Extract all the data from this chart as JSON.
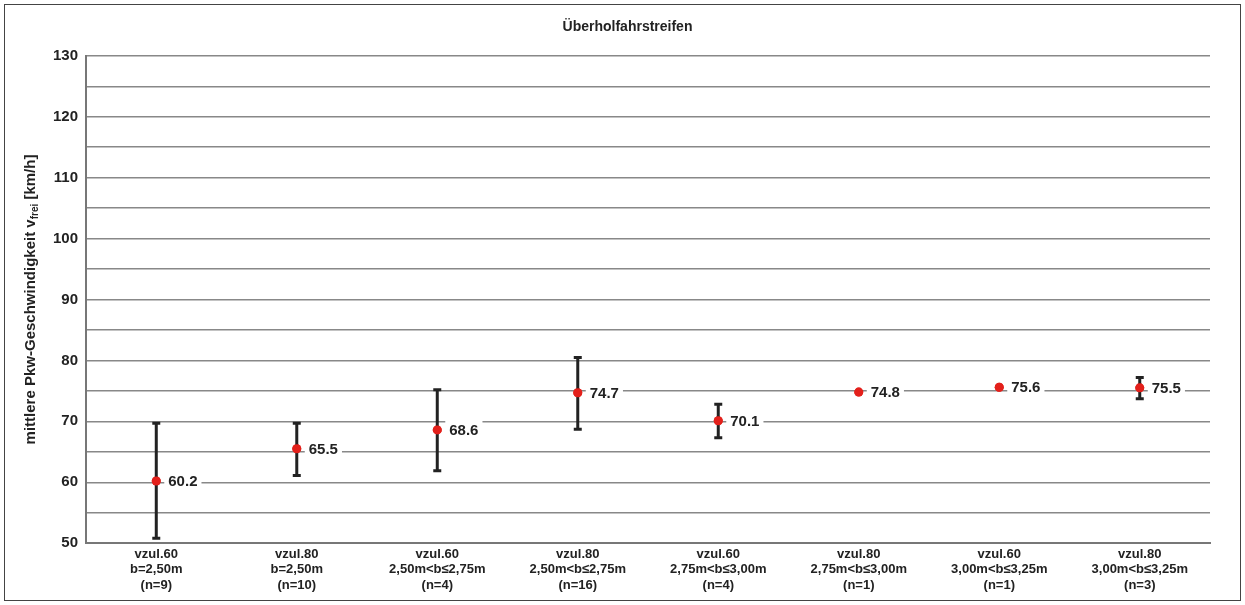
{
  "chart_data": {
    "type": "scatter",
    "title": "Überholfahrstreifen",
    "ylabel": "mittlere Pkw-Geschwindigkeit v$_{frei}$ [km/h]",
    "categories": [
      "vzul.60\nb=2,50m\n(n=9)",
      "vzul.80\nb=2,50m\n(n=10)",
      "vzul.60\n2,50m<b≤2,75m\n(n=4)",
      "vzul.80\n2,50m<b≤2,75m\n(n=16)",
      "vzul.60\n2,75m<b≤3,00m\n(n=4)",
      "vzul.80\n2,75m<b≤3,00m\n(n=1)",
      "vzul.60\n3,00m<b≤3,25m\n(n=1)",
      "vzul.80\n3,00m<b≤3,25m\n(n=3)"
    ],
    "series": [
      {
        "color": "#e3201b",
        "values": [
          60.2,
          65.5,
          68.6,
          74.7,
          70.1,
          74.8,
          75.6,
          75.5
        ],
        "errors": [
          [
            50.8,
            69.7
          ],
          [
            61.1,
            69.7
          ],
          [
            61.9,
            75.2
          ],
          [
            68.7,
            80.5
          ],
          [
            67.3,
            72.8
          ],
          null,
          null,
          [
            73.7,
            77.2
          ]
        ]
      }
    ],
    "ylim": [
      50,
      130
    ],
    "yticks": [
      50,
      {
        "value": 55,
        "label": null
      },
      60,
      {
        "value": 65,
        "label": null
      },
      70,
      {
        "value": 75,
        "label": null
      },
      80,
      {
        "value": 85,
        "label": null
      },
      90,
      {
        "value": 95,
        "label": null
      },
      100,
      {
        "value": 105,
        "label": null
      },
      110,
      {
        "value": 115,
        "label": null
      },
      120,
      {
        "value": 125,
        "label": null
      },
      130
    ],
    "grid": "y",
    "marker": "circle",
    "data_labels": true,
    "legend": false
  }
}
